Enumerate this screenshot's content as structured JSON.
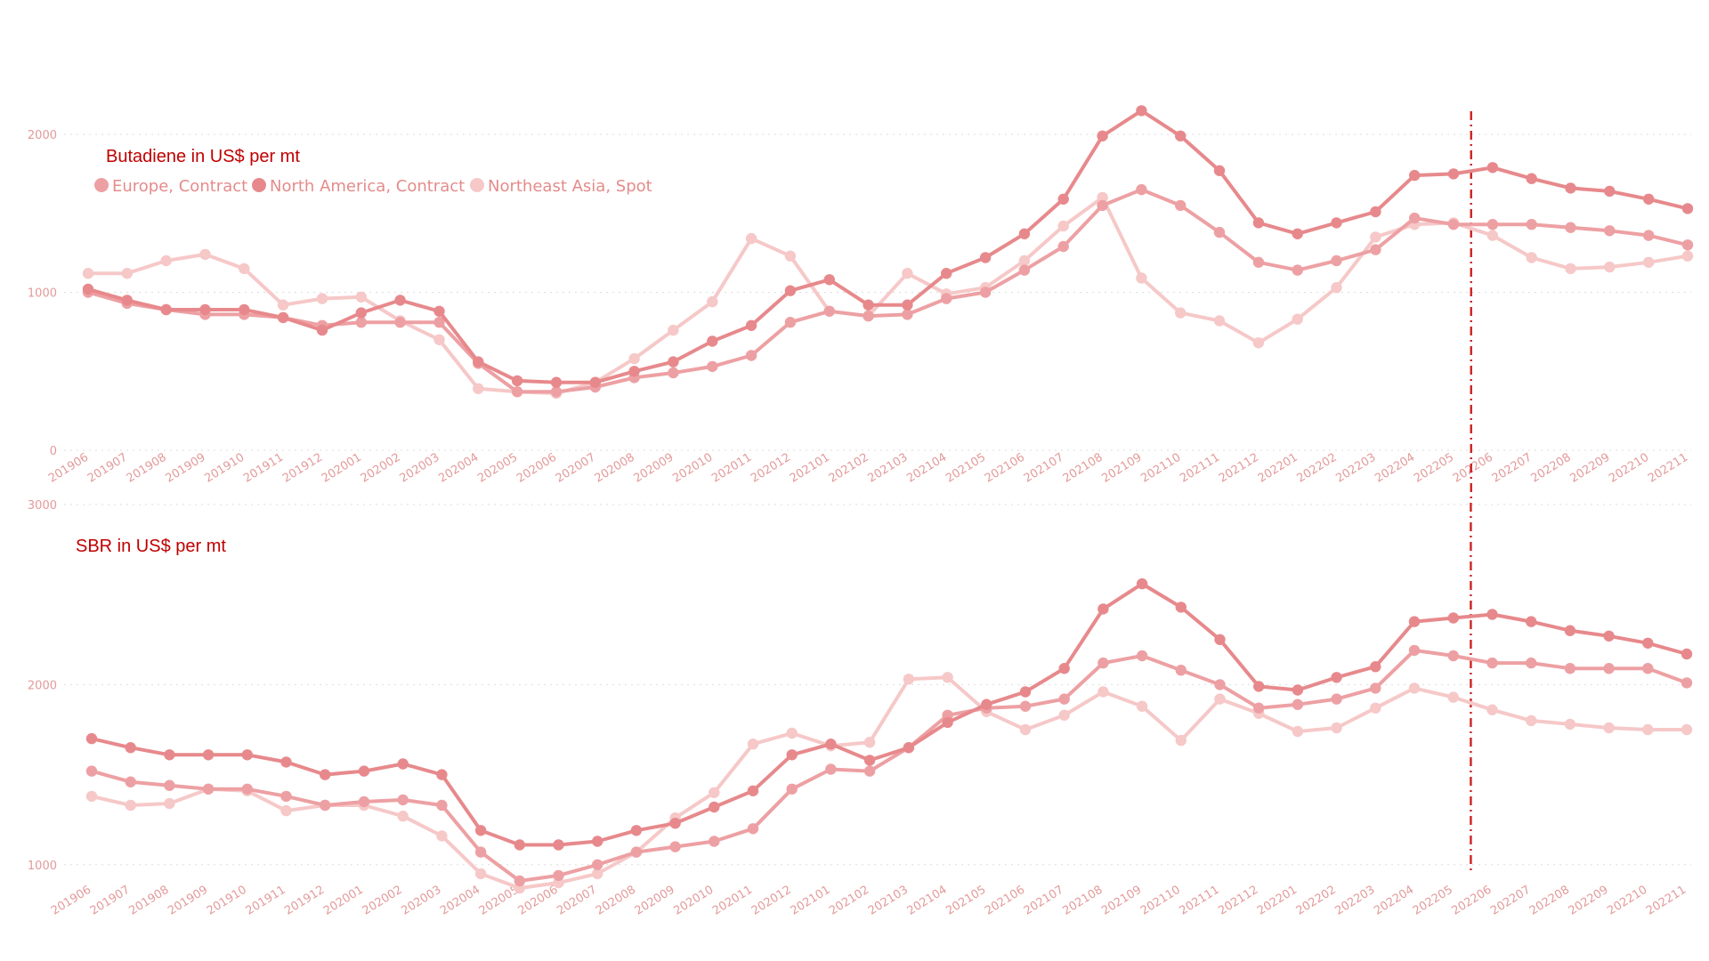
{
  "colors": {
    "Europe, Contract": "#eda0a3",
    "North America, Contract": "#e7898c",
    "Northeast Asia, Spot": "#f6c8c8",
    "marker_line": "#cc2222"
  },
  "legend": [
    "Europe, Contract",
    "North America, Contract",
    "Northeast Asia, Spot"
  ],
  "chart_data": [
    {
      "type": "line",
      "title": "Butadiene  in US$ per mt",
      "xlabel": "",
      "ylabel": "",
      "ylim": [
        0,
        2000
      ],
      "yticks": [
        0,
        1000,
        2000
      ],
      "grid": true,
      "legend_position": "top-left",
      "x": [
        "201906",
        "201907",
        "201908",
        "201909",
        "201910",
        "201911",
        "201912",
        "202001",
        "202002",
        "202003",
        "202004",
        "202005",
        "202006",
        "202007",
        "202008",
        "202009",
        "202010",
        "202011",
        "202012",
        "202101",
        "202102",
        "202103",
        "202104",
        "202105",
        "202106",
        "202107",
        "202108",
        "202109",
        "202110",
        "202111",
        "202112",
        "202201",
        "202202",
        "202203",
        "202204",
        "202205",
        "202206",
        "202207",
        "202208",
        "202209",
        "202210",
        "202211"
      ],
      "series": [
        {
          "name": "Europe, Contract",
          "values": [
            1000,
            930,
            890,
            860,
            860,
            840,
            790,
            810,
            810,
            810,
            550,
            370,
            370,
            400,
            460,
            490,
            530,
            600,
            810,
            880,
            850,
            860,
            960,
            1000,
            1140,
            1290,
            1550,
            1650,
            1550,
            1380,
            1190,
            1140,
            1200,
            1270,
            1470,
            1430,
            1430,
            1430,
            1410,
            1390,
            1360,
            1300
          ]
        },
        {
          "name": "North America, Contract",
          "values": [
            1020,
            950,
            890,
            890,
            890,
            840,
            760,
            870,
            950,
            880,
            560,
            440,
            430,
            430,
            500,
            560,
            690,
            790,
            1010,
            1080,
            920,
            920,
            1120,
            1220,
            1370,
            1590,
            1990,
            2150,
            1990,
            1770,
            1440,
            1370,
            1440,
            1510,
            1740,
            1750,
            1790,
            1720,
            1660,
            1640,
            1590,
            1530
          ]
        },
        {
          "name": "Northeast Asia, Spot",
          "values": [
            1120,
            1120,
            1200,
            1240,
            1150,
            920,
            960,
            970,
            820,
            700,
            390,
            370,
            360,
            430,
            580,
            760,
            940,
            1340,
            1230,
            880,
            850,
            1120,
            990,
            1030,
            1200,
            1420,
            1600,
            1090,
            870,
            820,
            680,
            830,
            1030,
            1350,
            1430,
            1440,
            1360,
            1220,
            1150,
            1160,
            1190,
            1230
          ]
        }
      ],
      "vertical_marker_after": "202205"
    },
    {
      "type": "line",
      "title": "SBR in US$ per mt",
      "xlabel": "",
      "ylabel": "",
      "ylim": [
        500,
        3000
      ],
      "yticks": [
        1000,
        2000,
        3000
      ],
      "grid": true,
      "x": [
        "201906",
        "201907",
        "201908",
        "201909",
        "201910",
        "201911",
        "201912",
        "202001",
        "202002",
        "202003",
        "202004",
        "202005",
        "202006",
        "202007",
        "202008",
        "202009",
        "202010",
        "202011",
        "202012",
        "202101",
        "202102",
        "202103",
        "202104",
        "202105",
        "202106",
        "202107",
        "202108",
        "202109",
        "202110",
        "202111",
        "202112",
        "202201",
        "202202",
        "202203",
        "202204",
        "202205",
        "202206",
        "202207",
        "202208",
        "202209",
        "202210",
        "202211"
      ],
      "series": [
        {
          "name": "Europe, Contract",
          "values": [
            1520,
            1460,
            1440,
            1420,
            1420,
            1380,
            1330,
            1350,
            1360,
            1330,
            1070,
            910,
            940,
            1000,
            1070,
            1100,
            1130,
            1200,
            1420,
            1530,
            1520,
            1650,
            1830,
            1870,
            1880,
            1920,
            2120,
            2160,
            2080,
            2000,
            1870,
            1890,
            1920,
            1980,
            2190,
            2160,
            2120,
            2120,
            2090,
            2090,
            2090,
            2010
          ]
        },
        {
          "name": "North America, Contract",
          "values": [
            1700,
            1650,
            1610,
            1610,
            1610,
            1570,
            1500,
            1520,
            1560,
            1500,
            1190,
            1110,
            1110,
            1130,
            1190,
            1230,
            1320,
            1410,
            1610,
            1670,
            1580,
            1650,
            1790,
            1890,
            1960,
            2090,
            2420,
            2560,
            2430,
            2250,
            1990,
            1970,
            2040,
            2100,
            2350,
            2370,
            2390,
            2350,
            2300,
            2270,
            2230,
            2170
          ]
        },
        {
          "name": "Northeast Asia, Spot",
          "values": [
            1380,
            1330,
            1340,
            1420,
            1410,
            1300,
            1330,
            1330,
            1270,
            1160,
            950,
            870,
            900,
            950,
            1070,
            1260,
            1400,
            1670,
            1730,
            1660,
            1680,
            2030,
            2040,
            1850,
            1750,
            1830,
            1960,
            1880,
            1690,
            1920,
            1840,
            1740,
            1760,
            1870,
            1980,
            1930,
            1860,
            1800,
            1780,
            1760,
            1750,
            1750
          ]
        }
      ],
      "vertical_marker_after": "202205"
    }
  ]
}
